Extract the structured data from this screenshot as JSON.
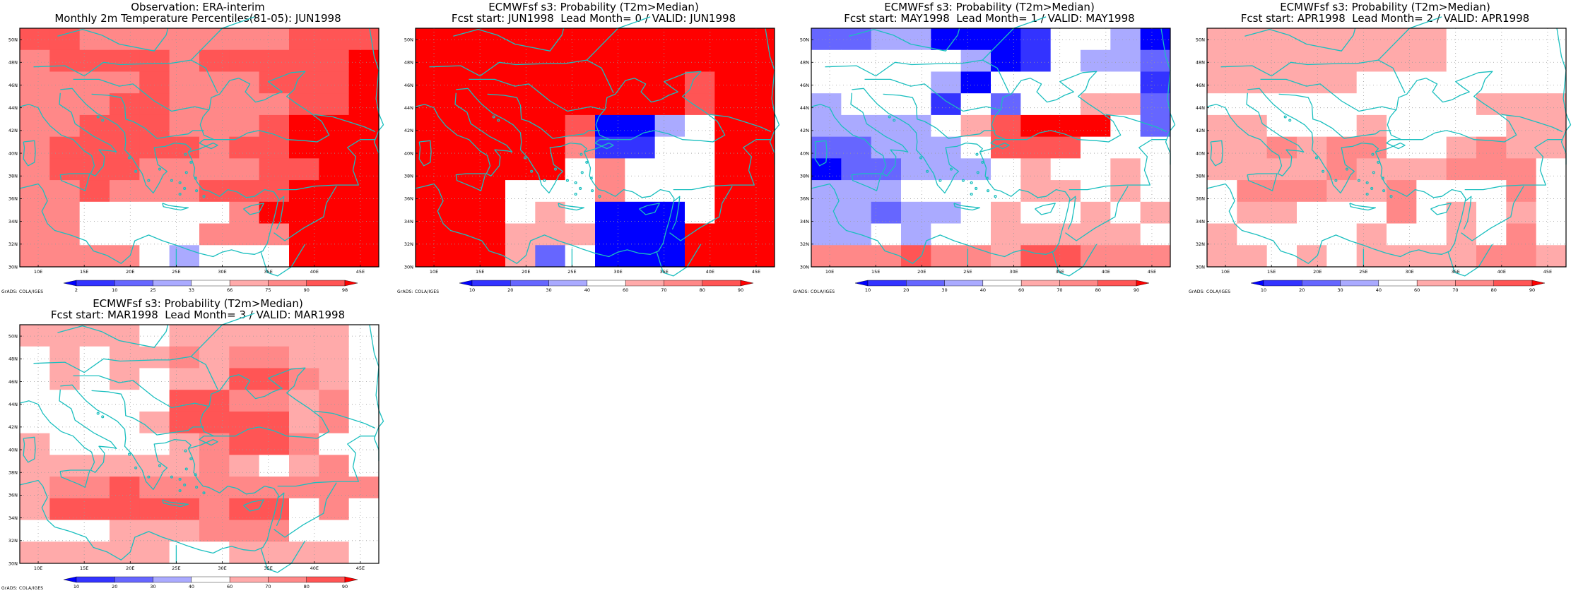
{
  "colors": {
    "levels": [
      "#0000ff",
      "#3333ff",
      "#6666ff",
      "#aaaaff",
      "#ffffff",
      "#ffaaaa",
      "#ff8888",
      "#ff5555",
      "#ff0000"
    ],
    "coast": "#1bbfbf",
    "grid": "#9a9a9a"
  },
  "axes": {
    "lat_labels": [
      "30N",
      "32N",
      "34N",
      "36N",
      "38N",
      "40N",
      "42N",
      "44N",
      "46N",
      "48N",
      "50N"
    ],
    "lon_labels": [
      "10E",
      "15E",
      "20E",
      "25E",
      "30E",
      "35E",
      "40E",
      "45E"
    ]
  },
  "credit": "GrADS: COLA/IGES",
  "panels": [
    {
      "title_line1": "Observation: ERA-interim",
      "title_line2": "Monthly 2m Temperature Percentiles(81-05): JUN1998",
      "colorbar_labels": [
        "2",
        "10",
        "25",
        "33",
        "66",
        "75",
        "90",
        "98"
      ],
      "grid": [
        "776666666777",
        "677776777778",
        "666676667778",
        "666776666778",
        "667776667888",
        "677777677888",
        "677766667788",
        "667666777888",
        "664444468888",
        "664444666888",
        "666643444888"
      ]
    },
    {
      "title_line1": "ECMWFsf s3: Probability (T2m>Median)",
      "title_line2": "Fcst start: JUN1998  Lead Month= 0 / VALID: JUN1998",
      "colorbar_labels": [
        "10",
        "20",
        "30",
        "40",
        "60",
        "70",
        "80",
        "90"
      ],
      "grid": [
        "888888888888",
        "888888888888",
        "888888888788",
        "888888888788",
        "888887003488",
        "888886114488",
        "888884644488",
        "888444644488",
        "888454000488",
        "888555000888",
        "888524000888"
      ]
    },
    {
      "title_line1": "ECMWFsf s3: Probability (T2m>Median)",
      "title_line2": "Fcst start: MAY1998  Lead Month= 1 / VALID: MAY1998",
      "colorbar_labels": [
        "10",
        "20",
        "30",
        "40",
        "60",
        "70",
        "80",
        "90"
      ],
      "grid": [
        "223300014430",
        "444443014332",
        "444430444441",
        "344414244552",
        "333345788842",
        "223334777444",
        "022333454454",
        "333444455454",
        "332334544545",
        "334344555554",
        "666766577666"
      ]
    },
    {
      "title_line1": "ECMWFsf s3: Probability (T2m>Median)",
      "title_line2": "Fcst start: APR1998  Lead Month= 2 / VALID: APR1998",
      "colorbar_labels": [
        "10",
        "20",
        "30",
        "40",
        "60",
        "70",
        "80",
        "90"
      ],
      "grid": [
        "555555554444",
        "555555554444",
        "555554444444",
        "444444444555",
        "554445444455",
        "556566445655",
        "555565556664",
        "466655644464",
        "455444645454",
        "544445445464",
        "554545555665"
      ]
    },
    {
      "title_line1": "ECMWFsf s3: Probability (T2m>Median)",
      "title_line2": "Fcst start: MAR1998  Lead Month= 3 / VALID: MAR1998",
      "colorbar_labels": [
        "10",
        "20",
        "30",
        "40",
        "60",
        "70",
        "80",
        "90"
      ],
      "grid": [
        "555545555554",
        "454556566554",
        "454545577654",
        "444447766564",
        "444457777564",
        "544445677644",
        "555555654564",
        "566766666666",
        "577777677464",
        "444555666444",
        "555554455554"
      ]
    }
  ]
}
